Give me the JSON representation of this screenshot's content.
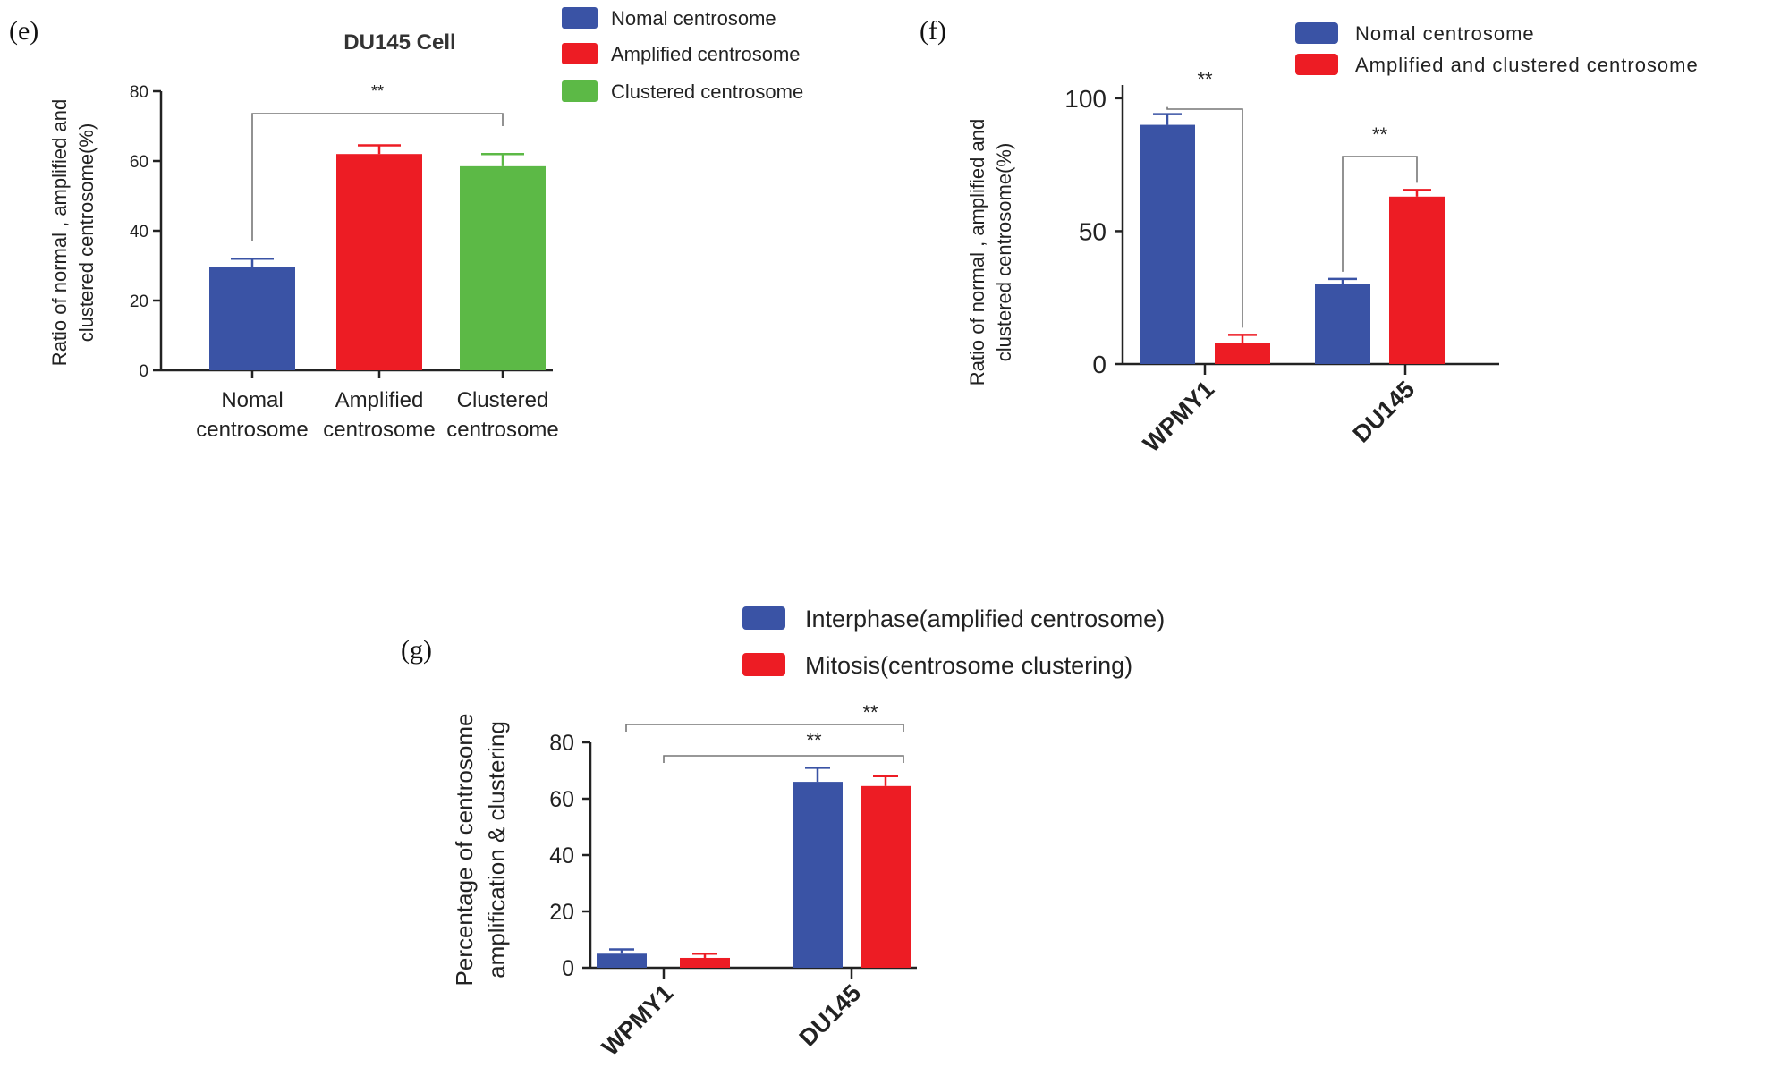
{
  "panels": {
    "e": {
      "label": "(e)"
    },
    "f": {
      "label": "(f)"
    },
    "g": {
      "label": "(g)"
    }
  },
  "colors": {
    "blue": "#3a53a5",
    "red": "#ed1c24",
    "green": "#5cb946",
    "axis": "#222222"
  },
  "chart_data": [
    {
      "id": "e",
      "type": "bar",
      "title": "DU145 Cell",
      "ylabel_lines": [
        "Ratio of normal , amplified and",
        "clustered centrosome(%)"
      ],
      "categories": [
        [
          "Nomal",
          "centrosome"
        ],
        [
          "Amplified",
          "centrosome"
        ],
        [
          "Clustered",
          "centrosome"
        ]
      ],
      "values": [
        29.5,
        62,
        58.5
      ],
      "errors": [
        2.5,
        2.5,
        3.5
      ],
      "bar_colors": [
        "#3a53a5",
        "#ed1c24",
        "#5cb946"
      ],
      "ylim": [
        0,
        80
      ],
      "yticks": [
        0,
        20,
        40,
        60,
        80
      ],
      "ytick_labels": [
        "0",
        "20",
        "40",
        "60",
        "80"
      ],
      "legend": [
        {
          "label": "Nomal centrosome",
          "color": "#3a53a5"
        },
        {
          "label": "Amplified centrosome",
          "color": "#ed1c24"
        },
        {
          "label": "Clustered centrosome",
          "color": "#5cb946"
        }
      ],
      "significance": [
        {
          "from": 0,
          "to": 2,
          "label": "**"
        }
      ]
    },
    {
      "id": "f",
      "type": "bar",
      "title": "",
      "ylabel_lines": [
        "Ratio of normal , amplified and",
        "clustered centrosome(%)"
      ],
      "categories": [
        "WPMY1",
        "DU145"
      ],
      "series": [
        {
          "name": "Nomal centrosome",
          "color": "#3a53a5",
          "values": [
            90,
            30
          ],
          "errors": [
            4,
            2
          ]
        },
        {
          "name": "Amplified and clustered centrosome",
          "color": "#ed1c24",
          "values": [
            8,
            63
          ],
          "errors": [
            3,
            2.5
          ]
        }
      ],
      "ylim": [
        0,
        105
      ],
      "yticks": [
        0,
        50,
        100
      ],
      "ytick_labels": [
        "0",
        "50",
        "100"
      ],
      "significance": [
        {
          "category": 0,
          "label": "**"
        },
        {
          "category": 1,
          "label": "**"
        }
      ]
    },
    {
      "id": "g",
      "type": "bar",
      "title": "",
      "ylabel_lines": [
        "Percentage of centrosome",
        "amplification & clustering"
      ],
      "categories": [
        "WPMY1",
        "DU145"
      ],
      "series": [
        {
          "name": "Interphase(amplified centrosome)",
          "color": "#3a53a5",
          "values": [
            5,
            66
          ],
          "errors": [
            1.5,
            5
          ]
        },
        {
          "name": "Mitosis(centrosome clustering)",
          "color": "#ed1c24",
          "values": [
            3.5,
            64.5
          ],
          "errors": [
            1.5,
            3.5
          ]
        }
      ],
      "ylim": [
        0,
        80
      ],
      "yticks": [
        0,
        20,
        40,
        60,
        80
      ],
      "ytick_labels": [
        "0",
        "20",
        "40",
        "60",
        "80"
      ],
      "significance": [
        {
          "from": [
            0,
            0
          ],
          "to": [
            1,
            1
          ],
          "label": "**"
        },
        {
          "from": [
            0,
            1
          ],
          "to": [
            1,
            1
          ],
          "label": "**"
        }
      ]
    }
  ]
}
